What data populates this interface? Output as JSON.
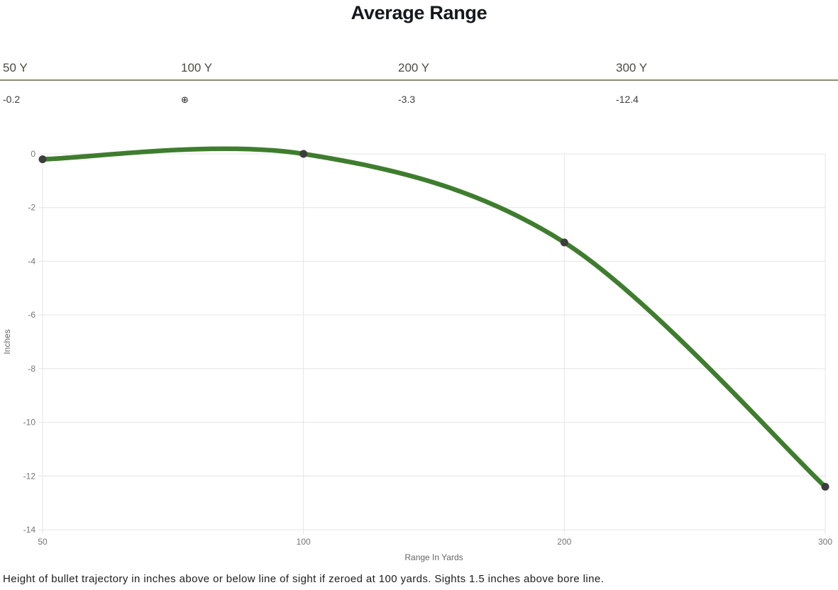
{
  "title": "Average Range",
  "summary_table": {
    "columns": [
      {
        "label": "50 Y",
        "value": "-0.2"
      },
      {
        "label": "100 Y",
        "value": "⊕"
      },
      {
        "label": "200 Y",
        "value": "-3.3"
      },
      {
        "label": "300 Y",
        "value": "-12.4"
      }
    ],
    "zero_symbol_name": "crosshair-zero-mark"
  },
  "chart_data": {
    "type": "line",
    "categories": [
      "50",
      "100",
      "200",
      "300"
    ],
    "x": [
      50,
      100,
      200,
      300
    ],
    "values": [
      -0.2,
      0,
      -3.3,
      -12.4
    ],
    "title": "",
    "xlabel": "Range In Yards",
    "ylabel": "Inches",
    "ylim": [
      -14,
      0
    ],
    "y_ticks": [
      0,
      -2,
      -4,
      -6,
      -8,
      -10,
      -12,
      -14
    ],
    "grid": true,
    "legend": "none",
    "line_color": "#3e7d2e",
    "point_color": "#3d3d3d",
    "grid_color": "#e4e4e4",
    "tick_color": "#757575"
  },
  "caption": "Height of bullet trajectory in inches above or below line of sight if zeroed at 100 yards. Sights 1.5 inches above bore line.",
  "colors": {
    "divider": "#8d8d70",
    "title": "#15181d",
    "header_label": "#4b4b45",
    "header_value": "#3e3e3e"
  }
}
